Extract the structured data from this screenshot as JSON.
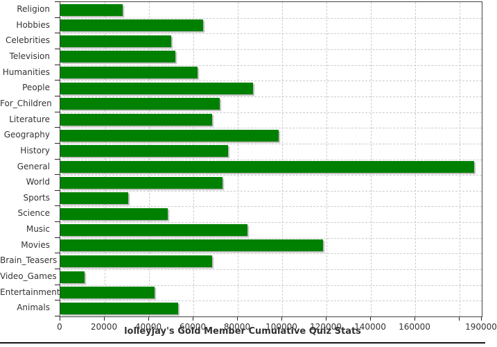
{
  "chart_data": {
    "type": "bar",
    "orientation": "horizontal",
    "title": "lolleyjay's Gold Member Cumulative Quiz Stats",
    "xlabel": "",
    "ylabel": "",
    "categories": [
      "Religion",
      "Hobbies",
      "Celebrities",
      "Television",
      "Humanities",
      "People",
      "For_Children",
      "Literature",
      "Geography",
      "History",
      "General",
      "World",
      "Sports",
      "Science",
      "Music",
      "Movies",
      "Brain_Teasers",
      "Video_Games",
      "Entertainment",
      "Animals"
    ],
    "values": [
      28000,
      64500,
      50000,
      52000,
      62000,
      87000,
      72000,
      68500,
      98500,
      75500,
      186500,
      73000,
      30500,
      48500,
      84500,
      118500,
      68500,
      11000,
      42500,
      53000
    ],
    "xlim": [
      0,
      190000
    ],
    "x_ticks": [
      {
        "value": 0,
        "label": "0"
      },
      {
        "value": 20000,
        "label": "20000"
      },
      {
        "value": 40000,
        "label": "40000"
      },
      {
        "value": 60000,
        "label": "60000"
      },
      {
        "value": 80000,
        "label": "80000"
      },
      {
        "value": 100000,
        "label": "100000"
      },
      {
        "value": 120000,
        "label": "120000"
      },
      {
        "value": 140000,
        "label": "140000"
      },
      {
        "value": 160000,
        "label": "160000"
      },
      {
        "value": 180000,
        "label": ""
      },
      {
        "value": 190000,
        "label": "190000"
      }
    ],
    "grid": "dashed",
    "legend": "none"
  },
  "colors": {
    "bar": "#008000",
    "bar_shadow": "#b0b0b0",
    "gridline": "#cccccc",
    "axis": "#404040",
    "text": "#333333",
    "background": "#ffffff",
    "bottom_rule": "#151515"
  }
}
